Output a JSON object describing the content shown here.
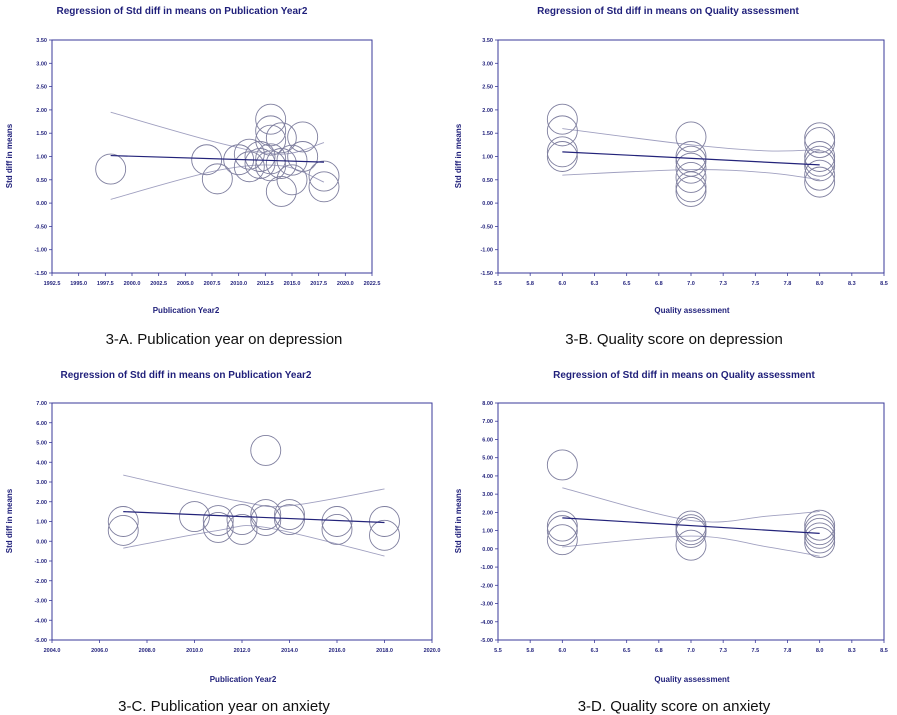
{
  "colors": {
    "frame": "#3a3a9a",
    "text": "#1f1f7a",
    "bubble": "#7f7f9f",
    "ci": "#a0a0c0",
    "regline": "#23237a"
  },
  "chart_data": [
    {
      "id": "A",
      "type": "scatter",
      "title": "Regression of Std diff in means on Publication Year2",
      "xlabel": "Publication Year2",
      "ylabel": "Std diff in means",
      "caption": "3-A. Publication year on depression",
      "xlim": [
        1992.5,
        2022.5
      ],
      "ylim": [
        -1.5,
        3.5
      ],
      "xticks": [
        "1992.5",
        "1995.0",
        "1997.5",
        "2000.0",
        "2002.5",
        "2005.0",
        "2007.5",
        "2010.0",
        "2012.5",
        "2015.0",
        "2017.5",
        "2020.0",
        "2022.5"
      ],
      "yticks": [
        "-1.50",
        "-1.00",
        "-0.50",
        "0.00",
        "0.50",
        "1.00",
        "1.50",
        "2.00",
        "2.50",
        "3.00",
        "3.50"
      ],
      "regression": {
        "x": [
          1998,
          2018
        ],
        "y": [
          1.02,
          0.88
        ]
      },
      "ci_upper": [
        [
          1998,
          1.95
        ],
        [
          2008,
          1.3
        ],
        [
          2014,
          1.05
        ],
        [
          2018,
          1.3
        ]
      ],
      "ci_lower": [
        [
          1998,
          0.08
        ],
        [
          2008,
          0.7
        ],
        [
          2014,
          0.8
        ],
        [
          2018,
          0.45
        ]
      ],
      "points": [
        {
          "x": 1998,
          "y": 0.73,
          "r": 1.0
        },
        {
          "x": 2007,
          "y": 0.93,
          "r": 1.0
        },
        {
          "x": 2008,
          "y": 0.52,
          "r": 1.0
        },
        {
          "x": 2010,
          "y": 0.93,
          "r": 1.0
        },
        {
          "x": 2011,
          "y": 0.78,
          "r": 1.0
        },
        {
          "x": 2011,
          "y": 1.05,
          "r": 1.0
        },
        {
          "x": 2012,
          "y": 0.85,
          "r": 1.0
        },
        {
          "x": 2012,
          "y": 1.0,
          "r": 1.0
        },
        {
          "x": 2013,
          "y": 1.8,
          "r": 1.0
        },
        {
          "x": 2013,
          "y": 1.55,
          "r": 1.0
        },
        {
          "x": 2013,
          "y": 1.35,
          "r": 1.0
        },
        {
          "x": 2013,
          "y": 0.95,
          "r": 1.0
        },
        {
          "x": 2013,
          "y": 0.8,
          "r": 1.0
        },
        {
          "x": 2014,
          "y": 1.4,
          "r": 1.0
        },
        {
          "x": 2014,
          "y": 0.85,
          "r": 1.0
        },
        {
          "x": 2014,
          "y": 0.25,
          "r": 1.0
        },
        {
          "x": 2015,
          "y": 0.92,
          "r": 1.0
        },
        {
          "x": 2015,
          "y": 0.5,
          "r": 1.0
        },
        {
          "x": 2016,
          "y": 1.42,
          "r": 1.0
        },
        {
          "x": 2016,
          "y": 1.0,
          "r": 1.0
        },
        {
          "x": 2018,
          "y": 0.58,
          "r": 1.0
        },
        {
          "x": 2018,
          "y": 0.35,
          "r": 1.0
        }
      ]
    },
    {
      "id": "B",
      "type": "scatter",
      "title": "Regression of Std diff in means on Quality assessment",
      "xlabel": "Quality assessment",
      "ylabel": "Std diff in means",
      "caption": "3-B. Quality score on depression",
      "xlim": [
        5.5,
        8.5
      ],
      "ylim": [
        -1.5,
        3.5
      ],
      "xticks": [
        "5.5",
        "5.8",
        "6.0",
        "6.3",
        "6.5",
        "6.8",
        "7.0",
        "7.3",
        "7.5",
        "7.8",
        "8.0",
        "8.3",
        "8.5"
      ],
      "yticks": [
        "-1.50",
        "-1.00",
        "-0.50",
        "0.00",
        "0.50",
        "1.00",
        "1.50",
        "2.00",
        "2.50",
        "3.00",
        "3.50"
      ],
      "regression": {
        "x": [
          6.0,
          8.0
        ],
        "y": [
          1.1,
          0.82
        ]
      },
      "ci_upper": [
        [
          6.0,
          1.6
        ],
        [
          7.0,
          1.25
        ],
        [
          7.6,
          1.12
        ],
        [
          8.0,
          1.15
        ]
      ],
      "ci_lower": [
        [
          6.0,
          0.6
        ],
        [
          7.0,
          0.72
        ],
        [
          7.6,
          0.65
        ],
        [
          8.0,
          0.5
        ]
      ],
      "points": [
        {
          "x": 6.0,
          "y": 1.8,
          "r": 1.0
        },
        {
          "x": 6.0,
          "y": 1.55,
          "r": 1.0
        },
        {
          "x": 6.0,
          "y": 1.1,
          "r": 1.0
        },
        {
          "x": 6.0,
          "y": 1.0,
          "r": 1.0
        },
        {
          "x": 7.0,
          "y": 1.42,
          "r": 1.0
        },
        {
          "x": 7.0,
          "y": 1.0,
          "r": 1.0
        },
        {
          "x": 7.0,
          "y": 0.9,
          "r": 1.0
        },
        {
          "x": 7.0,
          "y": 0.75,
          "r": 1.0
        },
        {
          "x": 7.0,
          "y": 0.55,
          "r": 1.0
        },
        {
          "x": 7.0,
          "y": 0.35,
          "r": 1.0
        },
        {
          "x": 7.0,
          "y": 0.25,
          "r": 1.0
        },
        {
          "x": 8.0,
          "y": 1.4,
          "r": 1.0
        },
        {
          "x": 8.0,
          "y": 1.3,
          "r": 1.0
        },
        {
          "x": 8.0,
          "y": 1.0,
          "r": 1.0
        },
        {
          "x": 8.0,
          "y": 0.9,
          "r": 1.0
        },
        {
          "x": 8.0,
          "y": 0.8,
          "r": 1.0
        },
        {
          "x": 8.0,
          "y": 0.6,
          "r": 1.0
        },
        {
          "x": 8.0,
          "y": 0.45,
          "r": 1.0
        }
      ]
    },
    {
      "id": "C",
      "type": "scatter",
      "title": "Regression of Std diff in means on Publication Year2",
      "xlabel": "Publication Year2",
      "ylabel": "Std diff in means",
      "caption": "3-C. Publication year on anxiety",
      "xlim": [
        2004,
        2020
      ],
      "ylim": [
        -5,
        7
      ],
      "xticks": [
        "2004.0",
        "2006.0",
        "2008.0",
        "2010.0",
        "2012.0",
        "2014.0",
        "2016.0",
        "2018.0",
        "2020.0"
      ],
      "yticks": [
        "-5.00",
        "-4.00",
        "-3.00",
        "-2.00",
        "-1.00",
        "0.00",
        "1.00",
        "2.00",
        "3.00",
        "4.00",
        "5.00",
        "6.00",
        "7.00"
      ],
      "regression": {
        "x": [
          2007,
          2018
        ],
        "y": [
          1.5,
          0.95
        ]
      },
      "ci_upper": [
        [
          2007,
          3.35
        ],
        [
          2012,
          2.0
        ],
        [
          2014,
          1.8
        ],
        [
          2018,
          2.65
        ]
      ],
      "ci_lower": [
        [
          2007,
          -0.35
        ],
        [
          2011,
          0.55
        ],
        [
          2013,
          0.7
        ],
        [
          2018,
          -0.75
        ]
      ],
      "points": [
        {
          "x": 2007,
          "y": 1.0,
          "r": 1.0
        },
        {
          "x": 2007,
          "y": 0.55,
          "r": 1.0
        },
        {
          "x": 2010,
          "y": 1.25,
          "r": 1.0
        },
        {
          "x": 2011,
          "y": 1.05,
          "r": 1.0
        },
        {
          "x": 2011,
          "y": 0.7,
          "r": 1.0
        },
        {
          "x": 2012,
          "y": 1.1,
          "r": 1.0
        },
        {
          "x": 2012,
          "y": 0.6,
          "r": 1.0
        },
        {
          "x": 2013,
          "y": 4.6,
          "r": 1.0
        },
        {
          "x": 2013,
          "y": 1.35,
          "r": 1.0
        },
        {
          "x": 2013,
          "y": 1.05,
          "r": 1.0
        },
        {
          "x": 2014,
          "y": 1.35,
          "r": 1.0
        },
        {
          "x": 2014,
          "y": 1.1,
          "r": 1.0
        },
        {
          "x": 2016,
          "y": 1.0,
          "r": 1.0
        },
        {
          "x": 2016,
          "y": 0.6,
          "r": 1.0
        },
        {
          "x": 2018,
          "y": 1.0,
          "r": 1.0
        },
        {
          "x": 2018,
          "y": 0.3,
          "r": 1.0
        }
      ]
    },
    {
      "id": "D",
      "type": "scatter",
      "title": "Regression of Std diff in means on Quality assessment",
      "xlabel": "Quality assessment",
      "ylabel": "Std diff in means",
      "caption": "3-D. Quality score on anxiety",
      "xlim": [
        5.5,
        8.5
      ],
      "ylim": [
        -5,
        8
      ],
      "xticks": [
        "5.5",
        "5.8",
        "6.0",
        "6.3",
        "6.5",
        "6.8",
        "7.0",
        "7.3",
        "7.5",
        "7.8",
        "8.0",
        "8.3",
        "8.5"
      ],
      "yticks": [
        "-5.00",
        "-4.00",
        "-3.00",
        "-2.00",
        "-1.00",
        "0.00",
        "1.00",
        "2.00",
        "3.00",
        "4.00",
        "5.00",
        "6.00",
        "7.00",
        "8.00"
      ],
      "regression": {
        "x": [
          6.0,
          8.0
        ],
        "y": [
          1.7,
          0.85
        ]
      },
      "ci_upper": [
        [
          6.0,
          3.35
        ],
        [
          7.0,
          1.55
        ],
        [
          7.6,
          1.8
        ],
        [
          8.0,
          2.05
        ]
      ],
      "ci_lower": [
        [
          6.0,
          0.1
        ],
        [
          7.0,
          0.7
        ],
        [
          7.6,
          0.1
        ],
        [
          8.0,
          -0.4
        ]
      ],
      "points": [
        {
          "x": 6.0,
          "y": 4.6,
          "r": 1.0
        },
        {
          "x": 6.0,
          "y": 1.25,
          "r": 1.0
        },
        {
          "x": 6.0,
          "y": 1.0,
          "r": 1.0
        },
        {
          "x": 6.0,
          "y": 0.5,
          "r": 1.0
        },
        {
          "x": 7.0,
          "y": 1.25,
          "r": 1.0
        },
        {
          "x": 7.0,
          "y": 1.05,
          "r": 1.0
        },
        {
          "x": 7.0,
          "y": 0.9,
          "r": 1.0
        },
        {
          "x": 7.0,
          "y": 0.2,
          "r": 1.0
        },
        {
          "x": 8.0,
          "y": 1.3,
          "r": 1.0
        },
        {
          "x": 8.0,
          "y": 1.05,
          "r": 1.0
        },
        {
          "x": 8.0,
          "y": 0.85,
          "r": 1.0
        },
        {
          "x": 8.0,
          "y": 0.6,
          "r": 1.0
        },
        {
          "x": 8.0,
          "y": 0.35,
          "r": 1.0
        }
      ]
    }
  ]
}
